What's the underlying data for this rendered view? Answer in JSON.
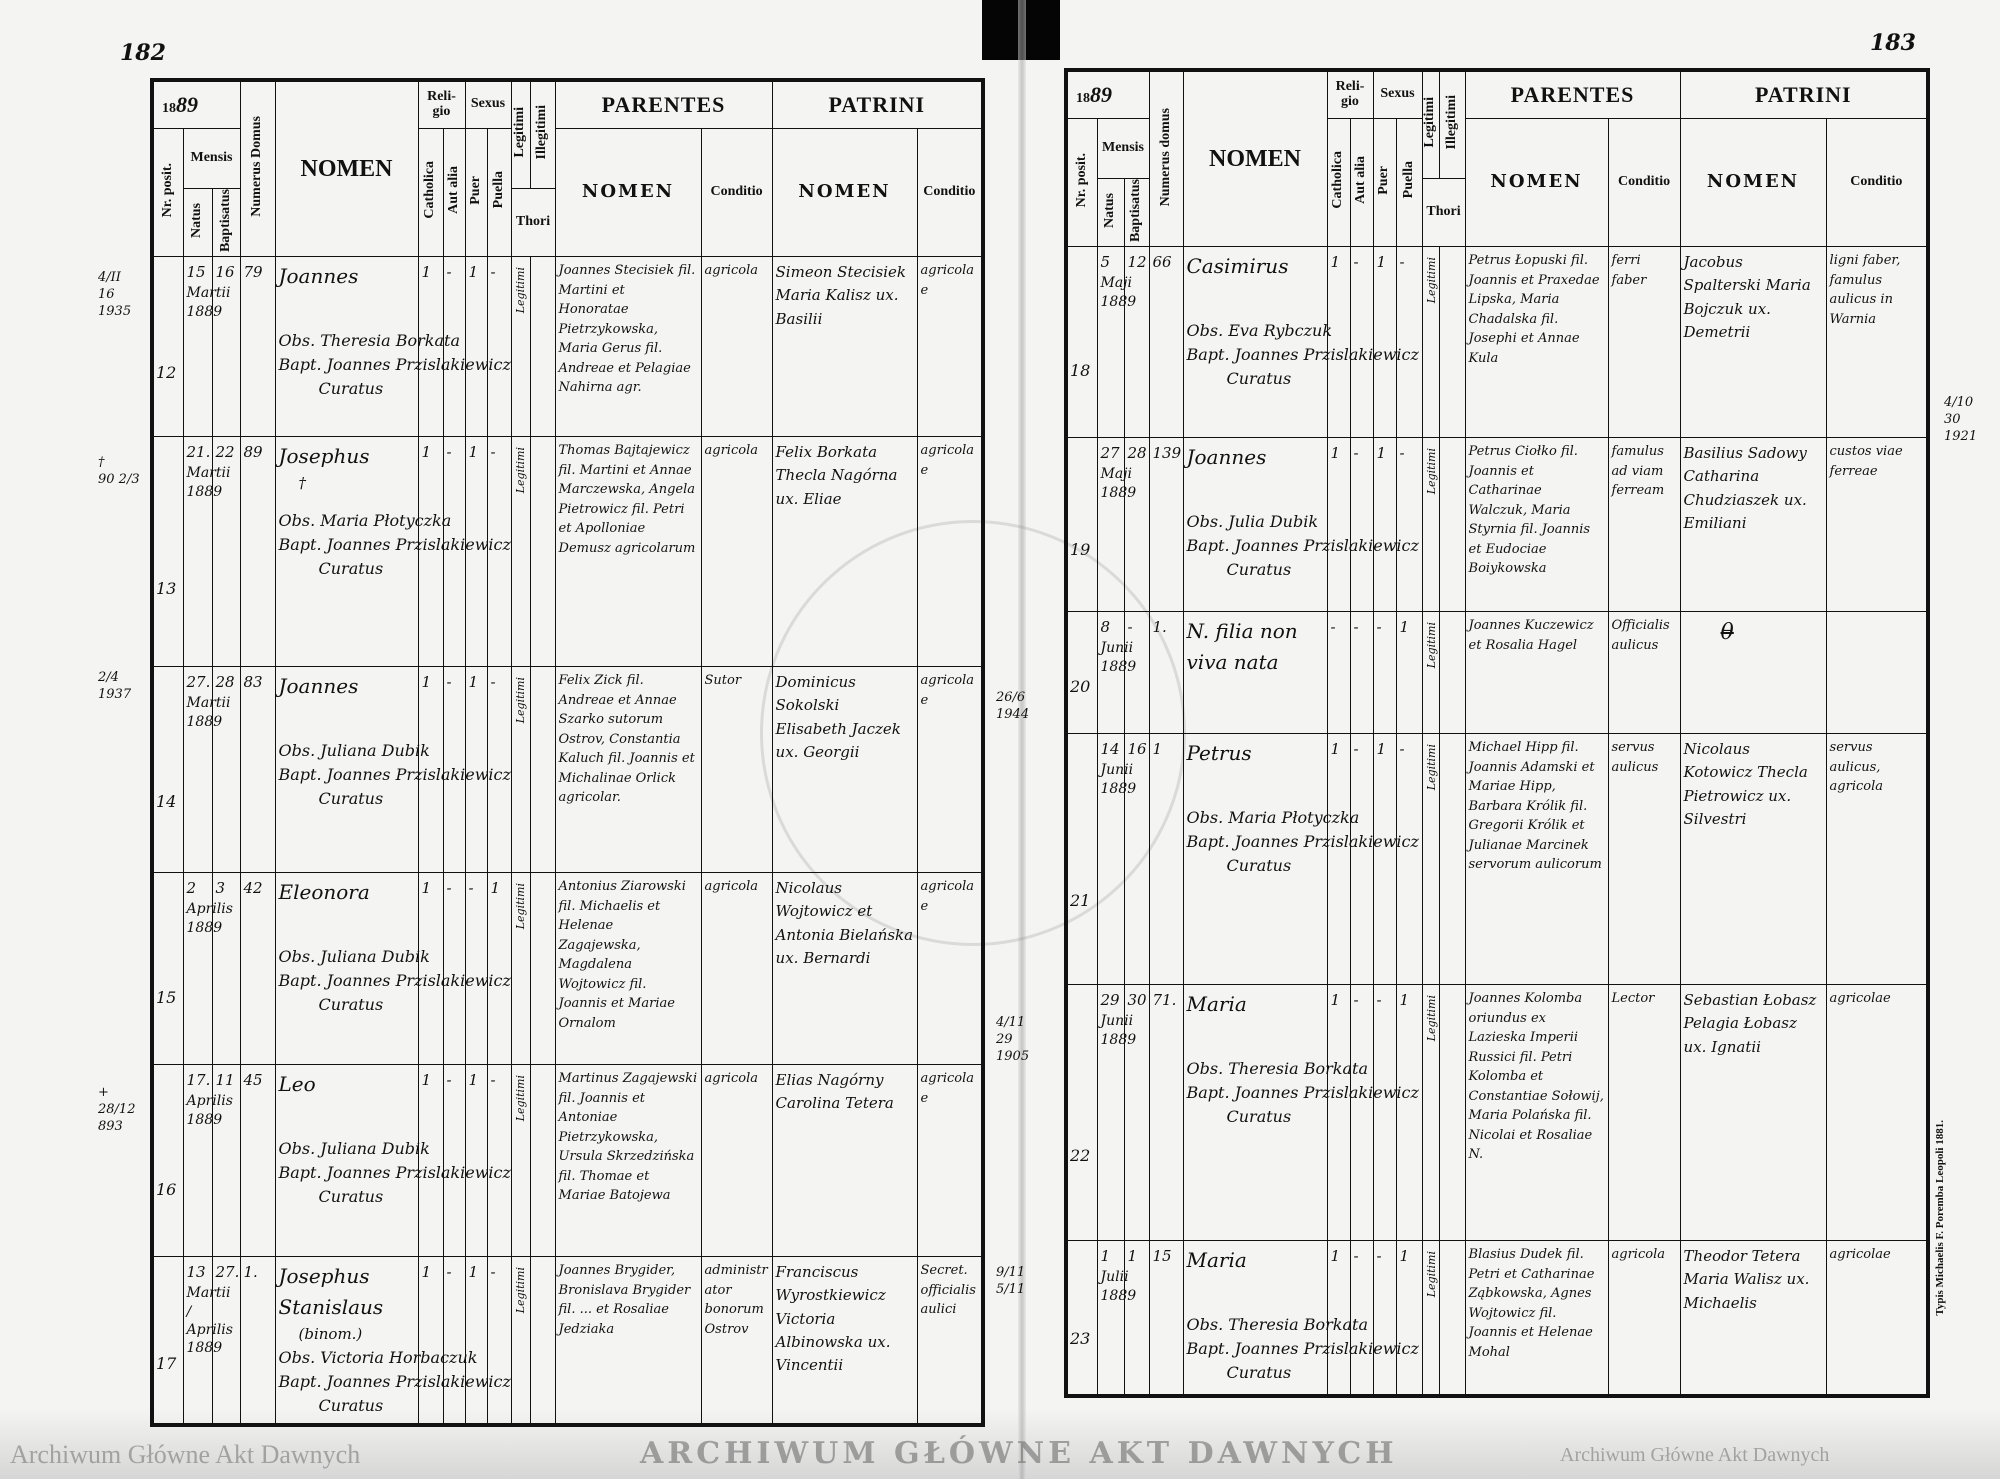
{
  "left_page": {
    "page_number": "182",
    "year_printed": "18",
    "year_written": "89",
    "rows": [
      {
        "nr": "12",
        "natus": "15",
        "baptisatus": "16",
        "mensis": "Martii",
        "year": "1889",
        "domus": "79",
        "nomen": "Joannes",
        "note": "",
        "catholica": "1",
        "aut_alia": "-",
        "puer": "1",
        "puella": "-",
        "legitimi": "Legitimi",
        "obstetrix": "Obs. Theresia Borkata",
        "baptizans": "Bapt. Joannes Przislakiewicz",
        "curatus": "Curatus",
        "parentes": "Joannes Stecisiek fil. Martini et Honoratae Pietrzykowska, Maria Gerus fil. Andreae et Pelagiae Nahirna agr.",
        "parentes_conditio": "agricola",
        "patrini": "Simeon Stecisiek  Maria Kalisz ux. Basilii",
        "patrini_conditio": "agricolae"
      },
      {
        "nr": "13",
        "natus": "21.",
        "baptisatus": "22",
        "mensis": "Martii",
        "year": "1889",
        "domus": "89",
        "nomen": "Josephus",
        "note": "†",
        "catholica": "1",
        "aut_alia": "-",
        "puer": "1",
        "puella": "-",
        "legitimi": "Legitimi",
        "obstetrix": "Obs. Maria Płotyczka",
        "baptizans": "Bapt. Joannes Przislakiewicz",
        "curatus": "Curatus",
        "parentes": "Thomas Bajtajewicz fil. Martini et Annae Marczewska, Angela Pietrowicz fil. Petri et Apolloniae Demusz agricolarum",
        "parentes_conditio": "agricola",
        "patrini": "Felix Borkata  Thecla Nagórna ux. Eliae",
        "patrini_conditio": "agricolae"
      },
      {
        "nr": "14",
        "natus": "27.",
        "baptisatus": "28",
        "mensis": "Martii",
        "year": "1889",
        "domus": "83",
        "nomen": "Joannes",
        "note": "",
        "catholica": "1",
        "aut_alia": "-",
        "puer": "1",
        "puella": "-",
        "legitimi": "Legitimi",
        "obstetrix": "Obs. Juliana Dubik",
        "baptizans": "Bapt. Joannes Przislakiewicz",
        "curatus": "Curatus",
        "parentes": "Felix Zick fil. Andreae et Annae Szarko sutorum Ostrov, Constantia Kaluch fil. Joannis et Michalinae Orlick agricolar.",
        "parentes_conditio": "Sutor",
        "patrini": "Dominicus Sokolski  Elisabeth Jaczek ux. Georgii",
        "patrini_conditio": "agricolae"
      },
      {
        "nr": "15",
        "natus": "2",
        "baptisatus": "3",
        "mensis": "Aprilis",
        "year": "1889",
        "domus": "42",
        "nomen": "Eleonora",
        "note": "",
        "catholica": "1",
        "aut_alia": "-",
        "puer": "-",
        "puella": "1",
        "legitimi": "Legitimi",
        "obstetrix": "Obs. Juliana Dubik",
        "baptizans": "Bapt. Joannes Przislakiewicz",
        "curatus": "Curatus",
        "parentes": "Antonius Ziarowski fil. Michaelis et Helenae Zagajewska, Magdalena Wojtowicz fil. Joannis et Mariae Ornalom",
        "parentes_conditio": "agricola",
        "patrini": "Nicolaus Wojtowicz et Antonia Bielańska ux. Bernardi",
        "patrini_conditio": "agricolae"
      },
      {
        "nr": "16",
        "natus": "17.",
        "baptisatus": "11",
        "mensis": "Aprilis",
        "year": "1889",
        "domus": "45",
        "nomen": "Leo",
        "note": "",
        "catholica": "1",
        "aut_alia": "-",
        "puer": "1",
        "puella": "-",
        "legitimi": "Legitimi",
        "obstetrix": "Obs. Juliana Dubik",
        "baptizans": "Bapt. Joannes Przislakiewicz",
        "curatus": "Curatus",
        "parentes": "Martinus Zagajewski fil. Joannis et Antoniae Pietrzykowska, Ursula Skrzedzińska fil. Thomae et Mariae Batojewa",
        "parentes_conditio": "agricola",
        "patrini": "Elias Nagórny  Carolina Tetera",
        "patrini_conditio": "agricolae"
      },
      {
        "nr": "17",
        "natus": "13",
        "baptisatus": "27.",
        "mensis": "Martii / Aprilis",
        "year": "1889",
        "domus": "1.",
        "nomen": "Josephus Stanislaus",
        "note": "(binom.)",
        "catholica": "1",
        "aut_alia": "-",
        "puer": "1",
        "puella": "-",
        "legitimi": "Legitimi",
        "obstetrix": "Obs. Victoria Horbaczuk",
        "baptizans": "Bapt. Joannes Przislakiewicz",
        "curatus": "Curatus",
        "parentes": "Joannes Brygider, Bronislava Brygider fil. ... et Rosaliae Jedziaka",
        "parentes_conditio": "administrator bonorum Ostrov",
        "patrini": "Franciscus Wyrostkiewicz  Victoria Albinowska ux. Vincentii",
        "patrini_conditio": "Secret. officialis aulici"
      }
    ],
    "margin_notes": [
      "4/II\n16\n1935",
      "†\n90 2/3",
      "2/4\n1937",
      "+\n28/12\n893"
    ]
  },
  "right_page": {
    "page_number": "183",
    "year_printed": "18",
    "year_written": "89",
    "rows": [
      {
        "nr": "18",
        "natus": "5",
        "baptisatus": "12",
        "mensis": "Maji",
        "year": "1889",
        "domus": "66",
        "nomen": "Casimirus",
        "note": "",
        "catholica": "1",
        "aut_alia": "-",
        "puer": "1",
        "puella": "-",
        "legitimi": "Legitimi",
        "obstetrix": "Obs. Eva Rybczuk",
        "baptizans": "Bapt. Joannes Przislakiewicz",
        "curatus": "Curatus",
        "parentes": "Petrus Łopuski fil. Joannis et Praxedae Lipska, Maria Chadalska fil. Josephi et Annae Kula",
        "parentes_conditio": "ferri faber",
        "patrini": "Jacobus Spalterski  Maria Bojczuk ux. Demetrii",
        "patrini_conditio": "ligni faber, famulus aulicus in Warnia"
      },
      {
        "nr": "19",
        "natus": "27",
        "baptisatus": "28",
        "mensis": "Maji",
        "year": "1889",
        "domus": "139",
        "nomen": "Joannes",
        "note": "",
        "catholica": "1",
        "aut_alia": "-",
        "puer": "1",
        "puella": "-",
        "legitimi": "Legitimi",
        "obstetrix": "Obs. Julia Dubik",
        "baptizans": "Bapt. Joannes Przislakiewicz",
        "curatus": "Curatus",
        "parentes": "Petrus Ciołko fil. Joannis et Catharinae Walczuk, Maria Styrnia fil. Joannis et Eudociae Boiykowska",
        "parentes_conditio": "famulus ad viam ferream",
        "patrini": "Basilius Sadowy  Catharina Chudziaszek ux. Emiliani",
        "patrini_conditio": "custos viae ferreae"
      },
      {
        "nr": "20",
        "natus": "8",
        "baptisatus": "-",
        "mensis": "Junii",
        "year": "1889",
        "domus": "1.",
        "nomen": "N. filia non viva nata",
        "note": "",
        "catholica": "-",
        "aut_alia": "-",
        "puer": "-",
        "puella": "1",
        "legitimi": "Legitimi",
        "obstetrix": "",
        "baptizans": "",
        "curatus": "",
        "parentes": "Joannes Kuczewicz et Rosalia Hagel",
        "parentes_conditio": "Officialis aulicus",
        "patrini": "θ",
        "patrini_conditio": ""
      },
      {
        "nr": "21",
        "natus": "14",
        "baptisatus": "16",
        "mensis": "Junii",
        "year": "1889",
        "domus": "1",
        "nomen": "Petrus",
        "note": "",
        "catholica": "1",
        "aut_alia": "-",
        "puer": "1",
        "puella": "-",
        "legitimi": "Legitimi",
        "obstetrix": "Obs. Maria Płotyczka",
        "baptizans": "Bapt. Joannes Przislakiewicz",
        "curatus": "Curatus",
        "parentes": "Michael Hipp fil. Joannis Adamski et Mariae Hipp, Barbara Królik fil. Gregorii Królik et Julianae Marcinek servorum aulicorum",
        "parentes_conditio": "servus aulicus",
        "patrini": "Nicolaus Kotowicz  Thecla Pietrowicz ux. Silvestri",
        "patrini_conditio": "servus aulicus, agricola"
      },
      {
        "nr": "22",
        "natus": "29",
        "baptisatus": "30",
        "mensis": "Junii",
        "year": "1889",
        "domus": "71.",
        "nomen": "Maria",
        "note": "",
        "catholica": "1",
        "aut_alia": "-",
        "puer": "-",
        "puella": "1",
        "legitimi": "Legitimi",
        "obstetrix": "Obs. Theresia Borkata",
        "baptizans": "Bapt. Joannes Przislakiewicz",
        "curatus": "Curatus",
        "parentes": "Joannes Kolomba oriundus ex Lazieska Imperii Russici fil. Petri Kolomba et Constantiae Sołowij, Maria Polańska fil. Nicolai et Rosaliae N.",
        "parentes_conditio": "Lector",
        "patrini": "Sebastian Łobasz  Pelagia Łobasz ux. Ignatii",
        "patrini_conditio": "agricolae"
      },
      {
        "nr": "23",
        "natus": "1",
        "baptisatus": "1",
        "mensis": "Julii",
        "year": "1889",
        "domus": "15",
        "nomen": "Maria",
        "note": "",
        "catholica": "1",
        "aut_alia": "-",
        "puer": "-",
        "puella": "1",
        "legitimi": "Legitimi",
        "obstetrix": "Obs. Theresia Borkata",
        "baptizans": "Bapt. Joannes Przislakiewicz",
        "curatus": "Curatus",
        "parentes": "Blasius Dudek fil. Petri et Catharinae Ząbkowska, Agnes Wojtowicz fil. Joannis et Helenae Mohal",
        "parentes_conditio": "agricola",
        "patrini": "Theodor Tetera  Maria Walisz ux. Michaelis",
        "patrini_conditio": "agricolae"
      }
    ],
    "margin_notes": [
      "4/10\n30\n1921",
      "26/6\n1944",
      "4/11\n29\n1905",
      "9/11\n5/11"
    ],
    "imprint": "Typis Michaelis F. Poremba Leopoli 1881."
  },
  "headers": {
    "nr_posit": "Nr. posit.",
    "mensis": "Mensis",
    "natus": "Natus",
    "baptisatus": "Baptisatus",
    "numerus_domus_left": "Numerus Domus",
    "numerus_domus_right": "Numerus domus",
    "nomen": "NOMEN",
    "religio": "Reli-gio",
    "catholica": "Catholica",
    "aut_alia": "Aut alia",
    "sexus": "Sexus",
    "puer": "Puer",
    "puella": "Puella",
    "legitimi": "Legitimi",
    "illegitimi": "Illegitimi",
    "thori": "Thori",
    "parentes": "PARENTES",
    "patrini": "PATRINI",
    "sub_nomen": "NOMEN",
    "conditio": "Conditio"
  },
  "watermark": "Archiwum Główne Akt Dawnych",
  "seal_text": "ARCHIWUM GŁÓWNE AKT DAWNYCH"
}
